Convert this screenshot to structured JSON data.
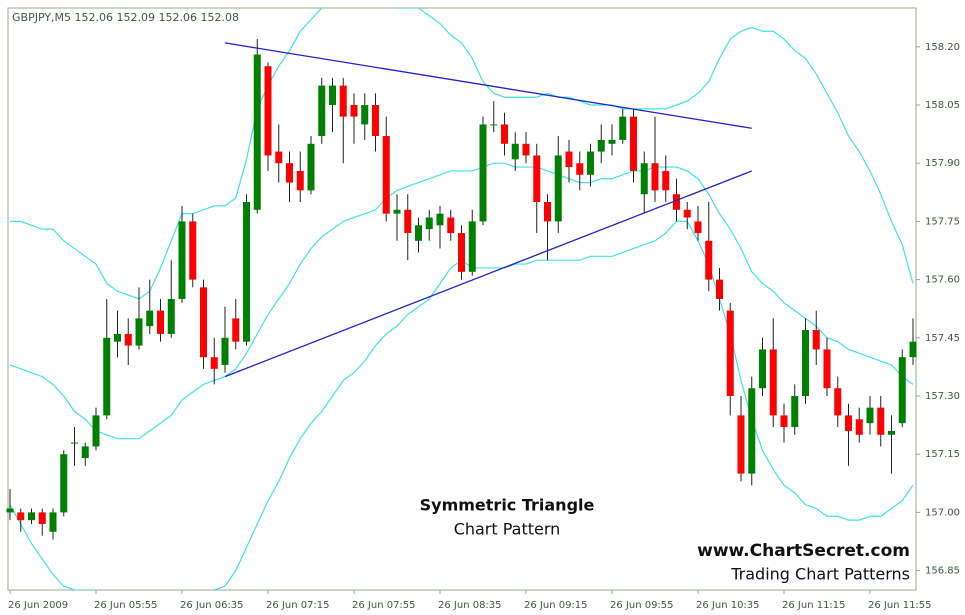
{
  "chart_data": {
    "type": "candlestick",
    "title": "GBPJPY,M5  152.06 152.09 152.06 152.08",
    "annotations": [
      "Symmetric Triangle",
      "Chart Pattern"
    ],
    "watermark": [
      "www.ChartSecret.com",
      "Trading Chart Patterns"
    ],
    "categories": [
      "26 Jun 2009",
      null,
      null,
      null,
      null,
      null,
      null,
      null,
      "26 Jun 05:55",
      null,
      null,
      null,
      null,
      null,
      null,
      null,
      "26 Jun 06:35",
      null,
      null,
      null,
      null,
      null,
      null,
      null,
      "26 Jun 07:15",
      null,
      null,
      null,
      null,
      null,
      null,
      null,
      "26 Jun 07:55",
      null,
      null,
      null,
      null,
      null,
      null,
      null,
      "26 Jun 08:35",
      null,
      null,
      null,
      null,
      null,
      null,
      null,
      "26 Jun 09:15",
      null,
      null,
      null,
      null,
      null,
      null,
      null,
      "26 Jun 09:55",
      null,
      null,
      null,
      null,
      null,
      null,
      null,
      "26 Jun 10:35",
      null,
      null,
      null,
      null,
      null,
      null,
      null,
      "26 Jun 11:15",
      null,
      null,
      null,
      null,
      null,
      null,
      null,
      "26 Jun 11:55",
      null,
      null,
      null,
      null
    ],
    "open": [
      157.0,
      157.0,
      156.98,
      157.0,
      156.95,
      157.0,
      157.18,
      157.14,
      157.17,
      157.25,
      157.44,
      157.46,
      157.43,
      157.48,
      157.52,
      157.46,
      157.55,
      157.75,
      157.58,
      157.4,
      157.38,
      157.5,
      157.44,
      157.78,
      158.15,
      157.93,
      157.9,
      157.88,
      157.83,
      157.97,
      158.05,
      158.1,
      158.05,
      158.0,
      158.05,
      157.97,
      157.77,
      157.78,
      157.7,
      157.73,
      157.74,
      157.76,
      157.72,
      157.62,
      157.75,
      158.0,
      158.0,
      157.91,
      157.95,
      157.92,
      157.8,
      157.75,
      157.93,
      157.9,
      157.87,
      157.93,
      157.95,
      157.96,
      158.02,
      157.82,
      157.9,
      157.88,
      157.82,
      157.78,
      157.75,
      157.7,
      157.6,
      157.52,
      157.25,
      157.1,
      157.32,
      157.42,
      157.25,
      157.22,
      157.3,
      157.47,
      157.42,
      157.32,
      157.25,
      157.24,
      157.23,
      157.27,
      157.2,
      157.23,
      157.4
    ],
    "high": [
      157.06,
      157.01,
      157.01,
      157.01,
      157.01,
      157.16,
      157.22,
      157.18,
      157.27,
      157.55,
      157.52,
      157.5,
      157.58,
      157.6,
      157.55,
      157.65,
      157.79,
      157.77,
      157.6,
      157.45,
      157.53,
      157.55,
      157.82,
      158.22,
      158.16,
      158.0,
      157.93,
      157.93,
      157.97,
      158.12,
      158.12,
      158.12,
      158.08,
      158.08,
      158.08,
      158.02,
      157.82,
      157.82,
      157.76,
      157.78,
      157.79,
      157.78,
      157.74,
      157.78,
      158.02,
      158.06,
      158.03,
      157.98,
      157.98,
      157.95,
      157.82,
      157.97,
      157.96,
      157.93,
      157.95,
      158.0,
      158.0,
      158.04,
      158.04,
      157.93,
      158.02,
      157.92,
      157.86,
      157.8,
      157.79,
      157.8,
      157.63,
      157.54,
      157.3,
      157.35,
      157.45,
      157.5,
      157.28,
      157.33,
      157.5,
      157.52,
      157.45,
      157.35,
      157.28,
      157.27,
      157.3,
      157.3,
      157.25,
      157.42,
      157.5
    ],
    "low": [
      156.98,
      156.95,
      156.97,
      156.94,
      156.93,
      156.99,
      157.12,
      157.12,
      157.16,
      157.24,
      157.4,
      157.38,
      157.42,
      157.46,
      157.44,
      157.45,
      157.54,
      157.58,
      157.37,
      157.33,
      157.36,
      157.42,
      157.43,
      157.77,
      157.88,
      157.85,
      157.8,
      157.8,
      157.82,
      157.95,
      157.98,
      157.9,
      157.95,
      157.96,
      157.93,
      157.75,
      157.7,
      157.65,
      157.67,
      157.7,
      157.68,
      157.7,
      157.6,
      157.61,
      157.74,
      157.98,
      157.92,
      157.88,
      157.9,
      157.72,
      157.65,
      157.72,
      157.85,
      157.83,
      157.84,
      157.9,
      157.92,
      157.95,
      157.85,
      157.77,
      157.8,
      157.8,
      157.75,
      157.73,
      157.7,
      157.57,
      157.52,
      157.25,
      157.08,
      157.07,
      157.3,
      157.22,
      157.18,
      157.2,
      157.28,
      157.38,
      157.3,
      157.22,
      157.12,
      157.18,
      157.2,
      157.17,
      157.1,
      157.22,
      157.38
    ],
    "close": [
      157.01,
      156.98,
      157.0,
      156.97,
      157.0,
      157.15,
      157.18,
      157.17,
      157.25,
      157.45,
      157.46,
      157.43,
      157.5,
      157.52,
      157.46,
      157.55,
      157.75,
      157.6,
      157.4,
      157.37,
      157.45,
      157.44,
      157.8,
      158.18,
      157.92,
      157.9,
      157.85,
      157.83,
      157.95,
      158.1,
      158.1,
      158.02,
      158.02,
      158.05,
      157.97,
      157.77,
      157.78,
      157.72,
      157.74,
      157.76,
      157.77,
      157.72,
      157.62,
      157.75,
      158.0,
      158.0,
      157.95,
      157.95,
      157.92,
      157.8,
      157.75,
      157.92,
      157.89,
      157.87,
      157.93,
      157.96,
      157.96,
      158.02,
      157.88,
      157.9,
      157.83,
      157.83,
      157.78,
      157.76,
      157.72,
      157.6,
      157.55,
      157.3,
      157.1,
      157.32,
      157.42,
      157.25,
      157.22,
      157.3,
      157.47,
      157.42,
      157.32,
      157.25,
      157.21,
      157.2,
      157.27,
      157.2,
      157.21,
      157.4,
      157.44
    ],
    "up_color": "#008000",
    "down_color": "#ff0000",
    "bands": [
      {
        "color": "#40e0e8",
        "values": [
          157.75,
          157.75,
          157.74,
          157.73,
          157.73,
          157.7,
          157.68,
          157.66,
          157.64,
          157.59,
          157.57,
          157.56,
          157.55,
          157.57,
          157.63,
          157.7,
          157.77,
          157.77,
          157.78,
          157.79,
          157.79,
          157.81,
          157.91,
          158.04,
          158.1,
          158.15,
          158.19,
          158.24,
          158.27,
          158.3,
          158.31,
          158.32,
          158.32,
          158.32,
          158.32,
          158.31,
          158.3,
          158.3,
          158.3,
          158.28,
          158.26,
          158.23,
          158.21,
          158.17,
          158.11,
          158.08,
          158.07,
          158.07,
          158.07,
          158.07,
          158.08,
          158.07,
          158.07,
          158.06,
          158.05,
          158.05,
          158.05,
          158.04,
          158.04,
          158.04,
          158.04,
          158.04,
          158.05,
          158.06,
          158.08,
          158.11,
          158.17,
          158.22,
          158.24,
          158.25,
          158.24,
          158.24,
          158.22,
          158.19,
          158.17,
          158.13,
          158.08,
          158.03,
          157.97,
          157.93,
          157.88,
          157.82,
          157.75,
          157.69,
          157.59
        ]
      },
      {
        "color": "#40e0e8",
        "values": [
          157.38,
          157.37,
          157.36,
          157.35,
          157.33,
          157.3,
          157.26,
          157.24,
          157.21,
          157.2,
          157.19,
          157.19,
          157.19,
          157.21,
          157.23,
          157.25,
          157.29,
          157.31,
          157.33,
          157.34,
          157.35,
          157.37,
          157.41,
          157.46,
          157.51,
          157.55,
          157.59,
          157.64,
          157.68,
          157.71,
          157.73,
          157.75,
          157.76,
          157.77,
          157.78,
          157.81,
          157.83,
          157.84,
          157.85,
          157.86,
          157.87,
          157.88,
          157.88,
          157.88,
          157.89,
          157.9,
          157.9,
          157.89,
          157.89,
          157.89,
          157.88,
          157.87,
          157.86,
          157.85,
          157.85,
          157.86,
          157.86,
          157.87,
          157.88,
          157.88,
          157.89,
          157.89,
          157.89,
          157.88,
          157.86,
          157.82,
          157.77,
          157.73,
          157.68,
          157.62,
          157.59,
          157.57,
          157.54,
          157.52,
          157.5,
          157.48,
          157.45,
          157.44,
          157.42,
          157.41,
          157.4,
          157.39,
          157.38,
          157.35,
          157.33
        ]
      },
      {
        "color": "#40e0e8",
        "values": [
          157.02,
          156.97,
          156.92,
          156.88,
          156.84,
          156.81,
          156.8,
          156.8,
          156.8,
          156.79,
          156.79,
          156.78,
          156.78,
          156.78,
          156.78,
          156.78,
          156.79,
          156.79,
          156.79,
          156.8,
          156.81,
          156.85,
          156.91,
          156.97,
          157.03,
          157.08,
          157.14,
          157.19,
          157.23,
          157.26,
          157.3,
          157.34,
          157.36,
          157.39,
          157.43,
          157.46,
          157.48,
          157.51,
          157.53,
          157.55,
          157.59,
          157.63,
          157.65,
          157.63,
          157.63,
          157.63,
          157.63,
          157.64,
          157.64,
          157.65,
          157.65,
          157.65,
          157.65,
          157.65,
          157.66,
          157.66,
          157.66,
          157.67,
          157.68,
          157.69,
          157.7,
          157.72,
          157.75,
          157.75,
          157.7,
          157.64,
          157.55,
          157.46,
          157.34,
          157.24,
          157.16,
          157.11,
          157.07,
          157.05,
          157.02,
          157.01,
          156.99,
          156.99,
          156.98,
          156.98,
          156.99,
          156.99,
          157.01,
          157.03,
          157.07
        ]
      }
    ],
    "trendlines": [
      {
        "color": "#2222cc",
        "from_index": 20,
        "from": 158.21,
        "to_index": 69,
        "to": 157.99
      },
      {
        "color": "#2222cc",
        "from_index": 20,
        "from": 157.35,
        "to_index": 69,
        "to": 157.88
      }
    ],
    "ylim": [
      156.8,
      158.3
    ],
    "yticks": [
      {
        "value": 158.2,
        "label": "158.20"
      },
      158.05,
      {
        "value": 157.9,
        "label": "157.90"
      },
      157.75,
      {
        "value": 157.6,
        "label": "157.60"
      },
      157.45,
      {
        "value": 157.3,
        "label": "157.30"
      },
      157.15,
      {
        "value": 157.0,
        "label": "157.00"
      },
      156.85
    ]
  }
}
